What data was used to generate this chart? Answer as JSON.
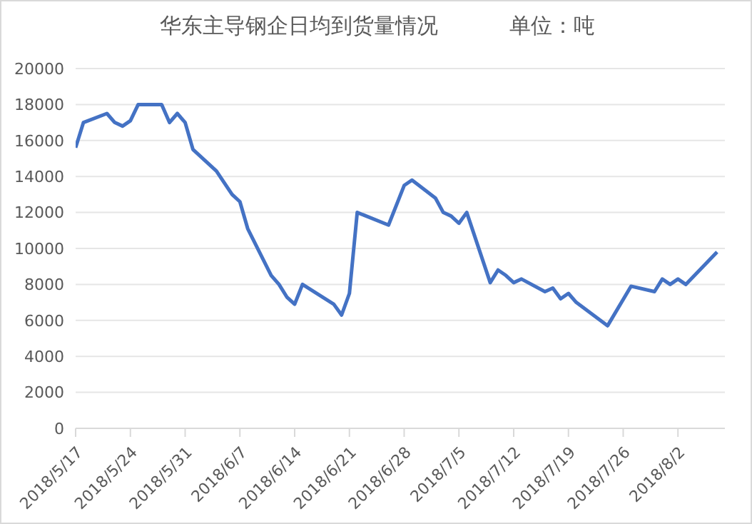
{
  "chart_data": {
    "type": "line",
    "title": "华东主导钢企日均到货量情况",
    "subtitle": "单位：吨",
    "x": [
      "2018-05-17",
      "2018-05-18",
      "2018-05-21",
      "2018-05-22",
      "2018-05-23",
      "2018-05-24",
      "2018-05-25",
      "2018-05-28",
      "2018-05-29",
      "2018-05-30",
      "2018-05-31",
      "2018-06-01",
      "2018-06-04",
      "2018-06-06",
      "2018-06-07",
      "2018-06-08",
      "2018-06-11",
      "2018-06-12",
      "2018-06-13",
      "2018-06-14",
      "2018-06-15",
      "2018-06-19",
      "2018-06-20",
      "2018-06-21",
      "2018-06-22",
      "2018-06-26",
      "2018-06-28",
      "2018-06-29",
      "2018-07-02",
      "2018-07-03",
      "2018-07-04",
      "2018-07-05",
      "2018-07-06",
      "2018-07-09",
      "2018-07-10",
      "2018-07-11",
      "2018-07-12",
      "2018-07-13",
      "2018-07-16",
      "2018-07-17",
      "2018-07-18",
      "2018-07-19",
      "2018-07-20",
      "2018-07-24",
      "2018-07-27",
      "2018-07-30",
      "2018-07-31",
      "2018-08-01",
      "2018-08-02",
      "2018-08-03",
      "2018-08-07"
    ],
    "series": [
      {
        "color": "#4472c4",
        "values": [
          15600,
          17000,
          17500,
          17000,
          16800,
          17100,
          18000,
          18000,
          17000,
          17500,
          17000,
          15500,
          14300,
          13000,
          12600,
          11100,
          8500,
          8000,
          7300,
          6900,
          8000,
          6900,
          6300,
          7500,
          12000,
          11300,
          13500,
          13800,
          12800,
          12000,
          11800,
          11400,
          12000,
          8100,
          8800,
          8500,
          8100,
          8300,
          7600,
          7800,
          7200,
          7500,
          7000,
          5700,
          7900,
          7600,
          8300,
          8000,
          8300,
          8000,
          9800
        ]
      }
    ],
    "xlim": [
      "2018-05-17",
      "2018-08-08"
    ],
    "xticks": [
      {
        "value": "2018-05-17",
        "label": "2018/5/17"
      },
      {
        "value": "2018-05-24",
        "label": "2018/5/24"
      },
      {
        "value": "2018-05-31",
        "label": "2018/5/31"
      },
      {
        "value": "2018-06-07",
        "label": "2018/6/7"
      },
      {
        "value": "2018-06-14",
        "label": "2018/6/14"
      },
      {
        "value": "2018-06-21",
        "label": "2018/6/21"
      },
      {
        "value": "2018-06-28",
        "label": "2018/6/28"
      },
      {
        "value": "2018-07-05",
        "label": "2018/7/5"
      },
      {
        "value": "2018-07-12",
        "label": "2018/7/12"
      },
      {
        "value": "2018-07-19",
        "label": "2018/7/19"
      },
      {
        "value": "2018-07-26",
        "label": "2018/7/26"
      },
      {
        "value": "2018-08-02",
        "label": "2018/8/2"
      }
    ],
    "ylim": [
      0,
      20000
    ],
    "yticks": [
      0,
      2000,
      4000,
      6000,
      8000,
      10000,
      12000,
      14000,
      16000,
      18000,
      20000
    ],
    "grid": "y",
    "legend": false,
    "marker": "none",
    "line_style": "solid"
  }
}
